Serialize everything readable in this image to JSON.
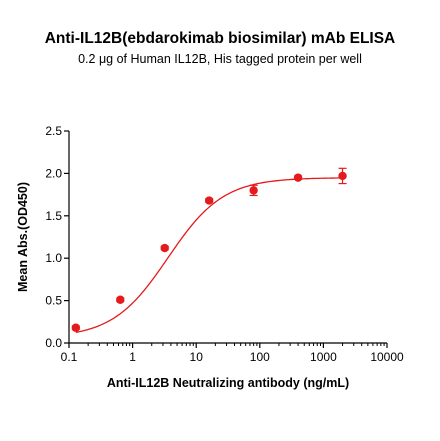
{
  "chart_data": {
    "type": "scatter",
    "title": "Anti-IL12B(ebdarokimab biosimilar) mAb ELISA",
    "subtitle": "0.2 μg of Human IL12B, His tagged protein per well",
    "xlabel": "Anti-IL12B Neutralizing antibody (ng/mL)",
    "ylabel": "Mean Abs.(OD450)",
    "xscale": "log",
    "xlim": [
      0.1,
      10000
    ],
    "ylim": [
      0.0,
      2.5
    ],
    "xticks": [
      0.1,
      1,
      10,
      100,
      1000,
      10000
    ],
    "xtick_labels": [
      "0.1",
      "1",
      "10",
      "100",
      "1000",
      "10000"
    ],
    "yticks": [
      0.0,
      0.5,
      1.0,
      1.5,
      2.0,
      2.5
    ],
    "ytick_labels": [
      "0.0",
      "0.5",
      "1.0",
      "1.5",
      "2.0",
      "2.5"
    ],
    "color": "#e41a1c",
    "series": [
      {
        "x": [
          0.128,
          0.64,
          3.2,
          16,
          80,
          400,
          2000
        ],
        "y": [
          0.18,
          0.51,
          1.12,
          1.68,
          1.8,
          1.95,
          1.97
        ],
        "error": [
          0.02,
          0.02,
          0.02,
          0.02,
          0.06,
          0.02,
          0.09
        ]
      }
    ],
    "fit": {
      "type": "4PL",
      "bottom": 0.06,
      "top": 1.95,
      "ec50": 3.6,
      "hill": 1.0
    }
  }
}
